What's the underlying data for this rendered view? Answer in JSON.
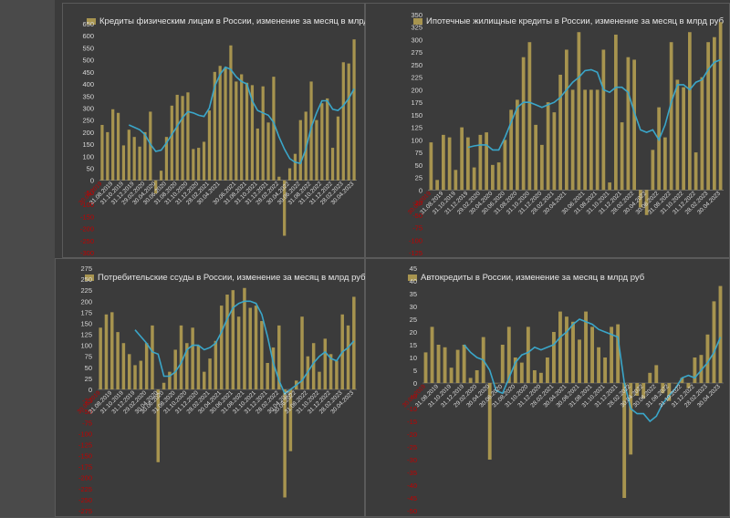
{
  "style": {
    "bar_color": "#a7944f",
    "line_color": "#3aa6c9",
    "axis_text_color": "#d9d9d9",
    "neg_text_color": "#c00000",
    "date_text_color": "#d9d9d9",
    "first_date_color": "#c00000",
    "panel_background": "#3b3b3b"
  },
  "chart_data": [
    {
      "type": "bar",
      "title": "Кредиты физическим лицам  в России, изменение за месяц в млрд руб",
      "y_ticks": [
        "650",
        "600",
        "550",
        "500",
        "450",
        "400",
        "350",
        "300",
        "250",
        "200",
        "150",
        "100",
        "50",
        "0",
        "-50",
        "-100",
        "-150",
        "-200",
        "-250",
        "-300"
      ],
      "ylim": [
        -300,
        650
      ],
      "x_labels": [
        "30.06.2019",
        "31.08.2019",
        "31.10.2019",
        "31.12.2019",
        "29.02.2020",
        "30.04.2020",
        "30.06.2020",
        "31.08.2020",
        "31.10.2020",
        "31.12.2020",
        "28.02.2021",
        "30.04.2021",
        "30.06.2021",
        "31.08.2021",
        "31.10.2021",
        "31.12.2021",
        "28.02.2022",
        "30.04.2022",
        "30.06.2022",
        "31.08.2022",
        "31.10.2022",
        "31.12.2022",
        "28.02.2023",
        "30.04.2023"
      ],
      "values": [
        230,
        200,
        295,
        280,
        145,
        210,
        180,
        140,
        200,
        285,
        -55,
        40,
        180,
        310,
        355,
        350,
        365,
        130,
        135,
        160,
        290,
        450,
        475,
        470,
        560,
        410,
        440,
        405,
        395,
        215,
        390,
        240,
        430,
        15,
        -230,
        50,
        110,
        250,
        285,
        410,
        250,
        320,
        340,
        135,
        265,
        490,
        485,
        585
      ],
      "line": [
        null,
        null,
        null,
        null,
        null,
        230,
        220,
        210,
        190,
        150,
        120,
        125,
        155,
        190,
        225,
        260,
        285,
        280,
        270,
        265,
        300,
        390,
        440,
        470,
        460,
        430,
        410,
        400,
        330,
        290,
        280,
        270,
        240,
        180,
        130,
        90,
        75,
        70,
        130,
        220,
        280,
        330,
        330,
        295,
        290,
        310,
        340,
        380
      ]
    },
    {
      "type": "bar",
      "title": "Ипотечные жилищные кредиты в России, изменение за месяц в млрд руб",
      "y_ticks": [
        "350",
        "325",
        "300",
        "275",
        "250",
        "225",
        "200",
        "175",
        "150",
        "125",
        "100",
        "75",
        "50",
        "25",
        "0",
        "-25",
        "-50",
        "-75",
        "-100",
        "-125"
      ],
      "ylim": [
        -125,
        350
      ],
      "x_labels": [
        "30.06.2019",
        "31.08.2019",
        "31.10.2019",
        "31.12.2019",
        "29.02.2020",
        "30.04.2020",
        "30.06.2020",
        "31.08.2020",
        "31.10.2020",
        "31.12.2020",
        "28.02.2021",
        "30.04.2021",
        "30.06.2021",
        "31.08.2021",
        "31.10.2021",
        "31.12.2021",
        "28.02.2022",
        "30.04.2022",
        "30.06.2022",
        "31.08.2022",
        "31.10.2022",
        "31.12.2022",
        "28.02.2023",
        "30.04.2023"
      ],
      "values": [
        95,
        20,
        110,
        105,
        40,
        125,
        105,
        45,
        110,
        115,
        50,
        55,
        100,
        160,
        180,
        265,
        295,
        130,
        90,
        175,
        155,
        230,
        280,
        200,
        315,
        200,
        200,
        200,
        280,
        15,
        310,
        135,
        265,
        260,
        -35,
        -50,
        80,
        165,
        105,
        295,
        220,
        205,
        315,
        75,
        225,
        295,
        305,
        335
      ],
      "line": [
        null,
        null,
        null,
        null,
        null,
        null,
        85,
        88,
        90,
        90,
        80,
        80,
        105,
        135,
        165,
        175,
        175,
        170,
        165,
        170,
        175,
        185,
        200,
        215,
        225,
        238,
        240,
        235,
        200,
        195,
        205,
        205,
        195,
        155,
        120,
        115,
        120,
        100,
        130,
        175,
        210,
        210,
        200,
        215,
        220,
        240,
        255,
        260
      ]
    },
    {
      "type": "bar",
      "title": "Потребительские ссуды в России, изменение за месяц в млрд руб",
      "y_ticks": [
        "275",
        "250",
        "225",
        "200",
        "175",
        "150",
        "125",
        "100",
        "75",
        "50",
        "25",
        "0",
        "-25",
        "-50",
        "-75",
        "-100",
        "-125",
        "-150",
        "-175",
        "-200",
        "-225",
        "-250",
        "-275"
      ],
      "ylim": [
        -275,
        275
      ],
      "x_labels": [
        "30.06.2019",
        "31.08.2019",
        "31.10.2019",
        "31.12.2019",
        "29.02.2020",
        "30.04.2020",
        "30.06.2020",
        "31.08.2020",
        "31.10.2020",
        "31.12.2020",
        "28.02.2021",
        "30.04.2021",
        "30.06.2021",
        "31.08.2021",
        "31.10.2021",
        "31.12.2021",
        "28.02.2022",
        "30.04.2022",
        "30.06.2022",
        "31.08.2022",
        "31.10.2022",
        "31.12.2022",
        "28.02.2023",
        "30.04.2023"
      ],
      "values": [
        140,
        170,
        175,
        130,
        105,
        80,
        55,
        65,
        105,
        145,
        -165,
        15,
        40,
        90,
        145,
        105,
        140,
        100,
        40,
        70,
        110,
        190,
        215,
        225,
        165,
        230,
        185,
        190,
        155,
        60,
        95,
        145,
        -245,
        -140,
        20,
        165,
        75,
        105,
        40,
        115,
        80,
        65,
        170,
        145,
        210
      ],
      "line": [
        null,
        null,
        null,
        null,
        null,
        null,
        135,
        120,
        105,
        85,
        80,
        30,
        30,
        40,
        60,
        90,
        100,
        100,
        90,
        95,
        105,
        130,
        160,
        185,
        195,
        200,
        200,
        195,
        170,
        120,
        60,
        20,
        -10,
        0,
        10,
        20,
        40,
        60,
        75,
        85,
        70,
        65,
        85,
        95,
        110
      ]
    },
    {
      "type": "bar",
      "title": "Автокредиты в России, изменение за месяц в млрд руб",
      "y_ticks": [
        "45",
        "40",
        "35",
        "30",
        "25",
        "20",
        "15",
        "10",
        "5",
        "0",
        "-5",
        "-10",
        "-15",
        "-20",
        "-25",
        "-30",
        "-35",
        "-40",
        "-45",
        "-50"
      ],
      "ylim": [
        -50,
        45
      ],
      "x_labels": [
        "30.06.2019",
        "31.08.2019",
        "31.10.2019",
        "31.12.2019",
        "29.02.2020",
        "30.04.2020",
        "30.06.2020",
        "31.08.2020",
        "31.10.2020",
        "31.12.2020",
        "28.02.2021",
        "30.04.2021",
        "30.06.2021",
        "31.08.2021",
        "31.10.2021",
        "31.12.2021",
        "28.02.2022",
        "30.04.2022",
        "30.06.2022",
        "31.08.2022",
        "31.10.2022",
        "31.12.2022",
        "28.02.2023",
        "30.04.2023"
      ],
      "values": [
        12,
        22,
        15,
        14,
        6,
        13,
        15,
        2,
        5,
        18,
        -30,
        0,
        15,
        22,
        10,
        8,
        22,
        5,
        4,
        10,
        20,
        28,
        26,
        24,
        17,
        28,
        22,
        14,
        10,
        22,
        23,
        -45,
        -28,
        -5,
        -6,
        4,
        7,
        -4,
        -7,
        0,
        2,
        -2,
        10,
        11,
        19,
        32,
        38
      ],
      "line": [
        null,
        null,
        null,
        null,
        null,
        null,
        15,
        12,
        10,
        9,
        5,
        -3,
        -4,
        2,
        8,
        11,
        12,
        14,
        13,
        14,
        15,
        18,
        20,
        23,
        25,
        24,
        23,
        21,
        20,
        19,
        18,
        0,
        -10,
        -12,
        -12,
        -15,
        -13,
        -8,
        -5,
        -2,
        2,
        3,
        2,
        5,
        8,
        12,
        18
      ]
    }
  ]
}
